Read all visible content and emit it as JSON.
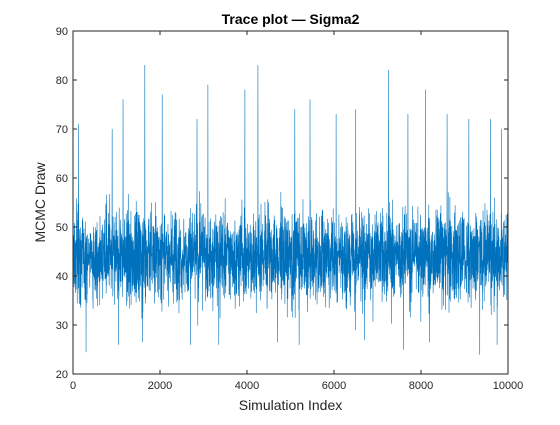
{
  "chart_data": {
    "type": "line",
    "title": "Trace plot — Sigma2",
    "xlabel": "Simulation Index",
    "ylabel": "MCMC Draw",
    "xlim": [
      0,
      10000
    ],
    "ylim": [
      20,
      90
    ],
    "x_ticks": [
      "0",
      "2000",
      "4000",
      "6000",
      "8000",
      "10000"
    ],
    "y_ticks": [
      "20",
      "30",
      "40",
      "50",
      "60",
      "70",
      "80",
      "90"
    ],
    "grid": false,
    "series": [
      {
        "color": "#0072BD",
        "n_draws": 10000,
        "center_band": [
          38,
          50
        ],
        "typical_range": [
          30,
          62
        ],
        "notable_peaks": [
          {
            "x": 130,
            "y": 71
          },
          {
            "x": 300,
            "y": 76
          },
          {
            "x": 900,
            "y": 70
          },
          {
            "x": 1150,
            "y": 76
          },
          {
            "x": 1650,
            "y": 83
          },
          {
            "x": 2050,
            "y": 77
          },
          {
            "x": 2850,
            "y": 72
          },
          {
            "x": 3100,
            "y": 79
          },
          {
            "x": 3950,
            "y": 78
          },
          {
            "x": 4250,
            "y": 83
          },
          {
            "x": 5100,
            "y": 74
          },
          {
            "x": 5450,
            "y": 76
          },
          {
            "x": 6050,
            "y": 73
          },
          {
            "x": 6500,
            "y": 74
          },
          {
            "x": 7250,
            "y": 82
          },
          {
            "x": 7700,
            "y": 73
          },
          {
            "x": 8100,
            "y": 78
          },
          {
            "x": 8600,
            "y": 73
          },
          {
            "x": 9100,
            "y": 72
          },
          {
            "x": 9600,
            "y": 72
          },
          {
            "x": 9850,
            "y": 70
          }
        ],
        "notable_troughs": [
          {
            "x": 300,
            "y": 24.5
          },
          {
            "x": 1050,
            "y": 26
          },
          {
            "x": 1600,
            "y": 26.5
          },
          {
            "x": 2700,
            "y": 26
          },
          {
            "x": 3350,
            "y": 26
          },
          {
            "x": 4700,
            "y": 26.5
          },
          {
            "x": 5200,
            "y": 26
          },
          {
            "x": 6700,
            "y": 27
          },
          {
            "x": 7600,
            "y": 25
          },
          {
            "x": 8200,
            "y": 26.5
          },
          {
            "x": 9350,
            "y": 24
          },
          {
            "x": 9750,
            "y": 26
          }
        ]
      }
    ]
  }
}
